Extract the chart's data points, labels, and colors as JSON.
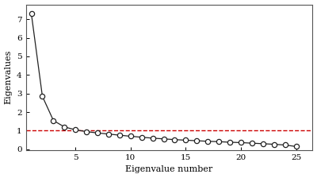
{
  "eigenvalues": [
    7.3,
    2.85,
    1.55,
    1.2,
    1.05,
    0.95,
    0.88,
    0.82,
    0.76,
    0.7,
    0.65,
    0.6,
    0.56,
    0.52,
    0.49,
    0.46,
    0.43,
    0.41,
    0.38,
    0.36,
    0.33,
    0.3,
    0.27,
    0.23,
    0.15
  ],
  "x_values": [
    1,
    2,
    3,
    4,
    5,
    6,
    7,
    8,
    9,
    10,
    11,
    12,
    13,
    14,
    15,
    16,
    17,
    18,
    19,
    20,
    21,
    22,
    23,
    24,
    25
  ],
  "hline_y": 1.0,
  "hline_color": "#cc0000",
  "line_color": "#222222",
  "marker_facecolor": "white",
  "marker_edgecolor": "#222222",
  "xlabel": "Eigenvalue number",
  "ylabel": "Eigenvalues",
  "xlim": [
    0.5,
    26.5
  ],
  "ylim": [
    -0.05,
    7.8
  ],
  "xticks": [
    5,
    10,
    15,
    20,
    25
  ],
  "yticks": [
    0,
    1,
    2,
    3,
    4,
    5,
    6,
    7
  ],
  "background_color": "#ffffff",
  "axis_fontsize": 8,
  "tick_fontsize": 7.5
}
